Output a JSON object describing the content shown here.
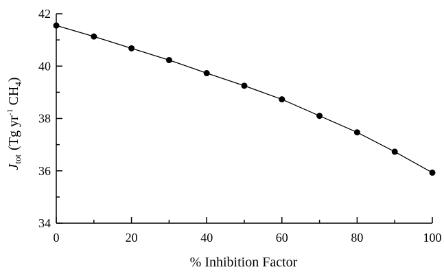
{
  "chart_data": {
    "type": "line",
    "title": "",
    "xlabel": "% Inhibition Factor",
    "ylabel": {
      "symbol": "J",
      "symbol_sub": "tot",
      "open": "(Tg yr",
      "sup": "-1",
      "mid": " CH",
      "sub": "4",
      "close": ")"
    },
    "xlim": [
      0,
      100
    ],
    "ylim": [
      34,
      42
    ],
    "xticks": [
      0,
      20,
      40,
      60,
      80,
      100
    ],
    "yticks": [
      34,
      36,
      38,
      40,
      42
    ],
    "x_minor_step": 10,
    "y_minor_step": 1,
    "grid": false,
    "legend": "none",
    "series": [
      {
        "x": [
          0,
          10,
          20,
          30,
          40,
          50,
          60,
          70,
          80,
          90,
          100
        ],
        "y": [
          41.55,
          41.13,
          40.68,
          40.23,
          39.73,
          39.25,
          38.73,
          38.1,
          37.47,
          36.73,
          35.93
        ],
        "color": "#000000",
        "marker": "circle"
      }
    ]
  }
}
